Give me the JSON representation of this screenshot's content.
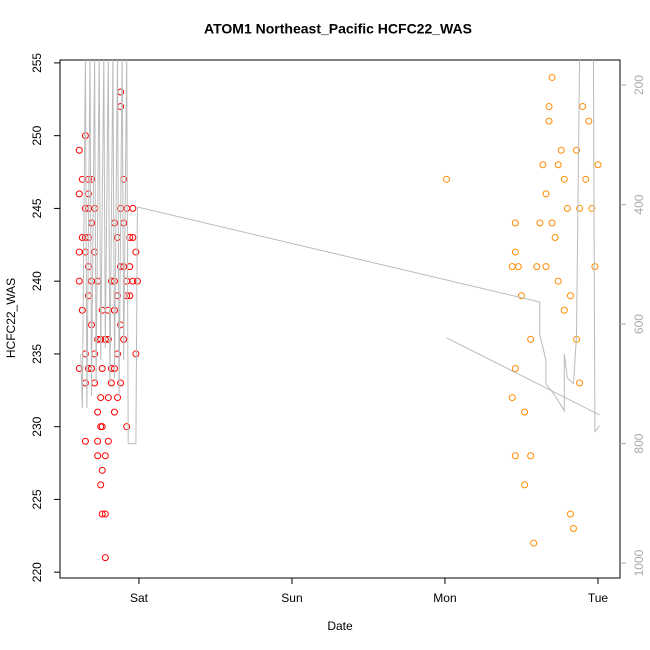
{
  "chart_data": {
    "type": "scatter",
    "title": "ATOM1 Northeast_Pacific HCFC22_WAS",
    "x_label": "Date",
    "y_label": "HCFC22_WAS",
    "xlim": [
      -0.516,
      3.144
    ],
    "xticks": [
      {
        "value": 0,
        "label": "Sat"
      },
      {
        "value": 1,
        "label": "Sun"
      },
      {
        "value": 2,
        "label": "Mon"
      },
      {
        "value": 3,
        "label": "Tue"
      }
    ],
    "ylim": [
      219.6,
      255.2
    ],
    "yticks": [
      220,
      225,
      230,
      235,
      240,
      245,
      250,
      255
    ],
    "y2lim": [
      1025,
      158
    ],
    "y2ticks": [
      200,
      400,
      600,
      800,
      1000
    ],
    "series": [
      {
        "color": "#ff0000",
        "x": [
          -0.39,
          -0.39,
          -0.39,
          -0.39,
          -0.39,
          -0.37,
          -0.37,
          -0.37,
          -0.35,
          -0.35,
          -0.35,
          -0.35,
          -0.35,
          -0.35,
          -0.35,
          -0.33,
          -0.33,
          -0.33,
          -0.33,
          -0.33,
          -0.33,
          -0.33,
          -0.31,
          -0.31,
          -0.31,
          -0.31,
          -0.31,
          -0.29,
          -0.29,
          -0.29,
          -0.29,
          -0.27,
          -0.27,
          -0.27,
          -0.27,
          -0.27,
          -0.25,
          -0.25,
          -0.25,
          -0.25,
          -0.24,
          -0.24,
          -0.24,
          -0.24,
          -0.24,
          -0.22,
          -0.22,
          -0.22,
          -0.22,
          -0.2,
          -0.2,
          -0.2,
          -0.2,
          -0.18,
          -0.18,
          -0.18,
          -0.16,
          -0.16,
          -0.16,
          -0.16,
          -0.16,
          -0.14,
          -0.14,
          -0.14,
          -0.14,
          -0.12,
          -0.12,
          -0.12,
          -0.12,
          -0.12,
          -0.12,
          -0.1,
          -0.1,
          -0.1,
          -0.1,
          -0.08,
          -0.08,
          -0.08,
          -0.08,
          -0.06,
          -0.06,
          -0.06,
          -0.04,
          -0.04,
          -0.04,
          -0.02,
          -0.02,
          -0.01
        ],
        "values": [
          249,
          246,
          242,
          240,
          234,
          247,
          243,
          238,
          250,
          245,
          243,
          242,
          235,
          233,
          229,
          247,
          246,
          245,
          243,
          241,
          239,
          234,
          247,
          244,
          240,
          237,
          234,
          245,
          242,
          235,
          233,
          240,
          236,
          231,
          229,
          228,
          236,
          232,
          230,
          226,
          238,
          234,
          230,
          227,
          224,
          236,
          228,
          224,
          221,
          238,
          236,
          232,
          229,
          240,
          234,
          233,
          244,
          240,
          238,
          234,
          231,
          243,
          239,
          235,
          232,
          253,
          252,
          245,
          241,
          237,
          233,
          247,
          244,
          241,
          236,
          245,
          240,
          239,
          230,
          243,
          241,
          239,
          245,
          243,
          240,
          242,
          235,
          240
        ]
      },
      {
        "color": "#ff8c00",
        "x": [
          2.01,
          2.44,
          2.44,
          2.46,
          2.46,
          2.46,
          2.46,
          2.48,
          2.5,
          2.52,
          2.52,
          2.56,
          2.56,
          2.58,
          2.6,
          2.62,
          2.64,
          2.66,
          2.66,
          2.68,
          2.68,
          2.7,
          2.7,
          2.72,
          2.74,
          2.74,
          2.76,
          2.78,
          2.78,
          2.8,
          2.82,
          2.82,
          2.84,
          2.86,
          2.86,
          2.88,
          2.88,
          2.9,
          2.92,
          2.94,
          2.96,
          2.98,
          3.0
        ],
        "values": [
          247,
          241,
          232,
          244,
          242,
          234,
          228,
          241,
          239,
          231,
          226,
          236,
          228,
          222,
          241,
          244,
          248,
          246,
          241,
          252,
          251,
          254,
          244,
          243,
          248,
          240,
          249,
          247,
          238,
          245,
          239,
          224,
          223,
          236,
          249,
          245,
          233,
          252,
          247,
          251,
          245,
          241,
          248
        ]
      },
      {
        "color": "#bbbbbb",
        "axis": "y2",
        "x": [
          -0.38,
          -0.37,
          -0.35,
          -0.34,
          -0.32,
          -0.31,
          -0.29,
          -0.28,
          -0.26,
          -0.25,
          -0.23,
          -0.22,
          -0.2,
          -0.19,
          -0.17,
          -0.16,
          -0.14,
          -0.13,
          -0.11,
          -0.1,
          -0.08,
          -0.07,
          -0.06,
          -0.02,
          -0.01,
          2.62,
          2.62,
          2.66,
          2.66,
          2.72,
          2.78,
          2.78,
          2.8,
          2.84,
          2.86,
          2.88,
          2.97,
          2.98,
          3.01,
          null,
          2.01,
          3.01
        ],
        "values": [
          650,
          740,
          150,
          740,
          150,
          720,
          150,
          700,
          150,
          660,
          150,
          640,
          150,
          700,
          150,
          690,
          150,
          720,
          150,
          660,
          150,
          800,
          800,
          800,
          404,
          563,
          618,
          660,
          700,
          720,
          745,
          650,
          690,
          700,
          620,
          150,
          150,
          780,
          770,
          null,
          623,
          752
        ]
      }
    ]
  }
}
